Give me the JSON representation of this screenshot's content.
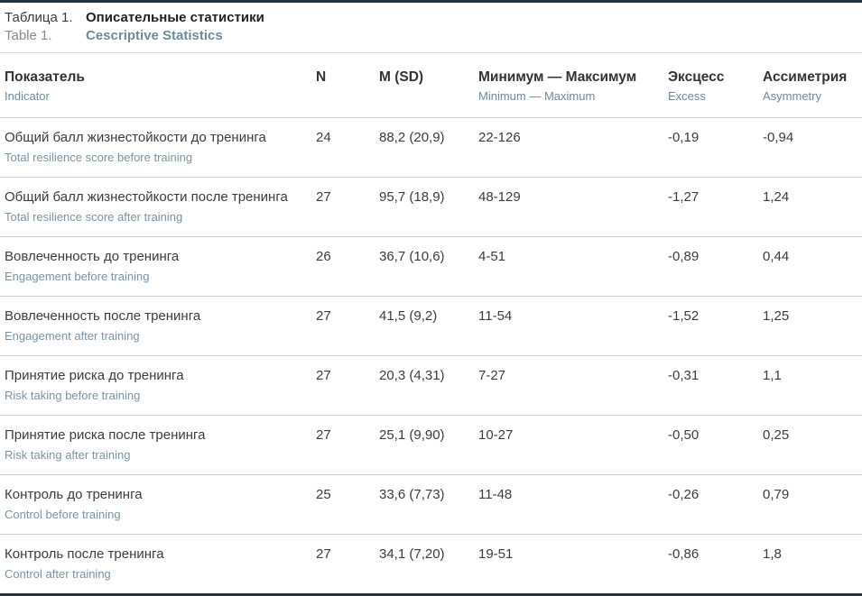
{
  "colors": {
    "rule_dark": "#23343c",
    "ru_text": "#3c3c3c",
    "en_text": "#7a94a2",
    "separator": "#cdd1d4"
  },
  "caption": {
    "ru_prefix": "Таблица 1.",
    "ru_title": "Описательные статистики",
    "en_prefix": "Table 1.",
    "en_title": "Cescriptive Statistics"
  },
  "table": {
    "columns": [
      {
        "ru": "Показатель",
        "en": "Indicator"
      },
      {
        "ru": "N",
        "en": ""
      },
      {
        "ru": "M (SD)",
        "en": ""
      },
      {
        "ru": "Минимум — Максимум",
        "en": "Minimum — Maximum"
      },
      {
        "ru": "Эксцесс",
        "en": "Excess"
      },
      {
        "ru": "Ассиметрия",
        "en": "Asymmetry"
      }
    ],
    "rows": [
      {
        "ru": "Общий балл жизнестойкости до тренинга",
        "en": "Total resilience score before training",
        "n": "24",
        "m_sd": "88,2 (20,9)",
        "min_max": "22-126",
        "excess": "-0,19",
        "asymmetry": "-0,94"
      },
      {
        "ru": "Общий балл жизнестойкости после тренинга",
        "en": "Total resilience score after training",
        "n": "27",
        "m_sd": "95,7 (18,9)",
        "min_max": "48-129",
        "excess": "-1,27",
        "asymmetry": "1,24"
      },
      {
        "ru": "Вовлеченность до тренинга",
        "en": "Engagement before training",
        "n": "26",
        "m_sd": "36,7 (10,6)",
        "min_max": "4-51",
        "excess": "-0,89",
        "asymmetry": "0,44"
      },
      {
        "ru": "Вовлеченность после тренинга",
        "en": "Engagement after training",
        "n": "27",
        "m_sd": "41,5 (9,2)",
        "min_max": "11-54",
        "excess": "-1,52",
        "asymmetry": "1,25"
      },
      {
        "ru": "Принятие риска до тренинга",
        "en": "Risk taking before training",
        "n": "27",
        "m_sd": "20,3 (4,31)",
        "min_max": "7-27",
        "excess": "-0,31",
        "asymmetry": "1,1"
      },
      {
        "ru": "Принятие риска после тренинга",
        "en": "Risk taking after training",
        "n": "27",
        "m_sd": "25,1 (9,90)",
        "min_max": "10-27",
        "excess": "-0,50",
        "asymmetry": "0,25"
      },
      {
        "ru": "Контроль до тренинга",
        "en": "Control before training",
        "n": "25",
        "m_sd": "33,6 (7,73)",
        "min_max": "11-48",
        "excess": "-0,26",
        "asymmetry": "0,79"
      },
      {
        "ru": "Контроль после тренинга",
        "en": "Control after training",
        "n": "27",
        "m_sd": "34,1 (7,20)",
        "min_max": "19-51",
        "excess": "-0,86",
        "asymmetry": "1,8"
      }
    ]
  }
}
